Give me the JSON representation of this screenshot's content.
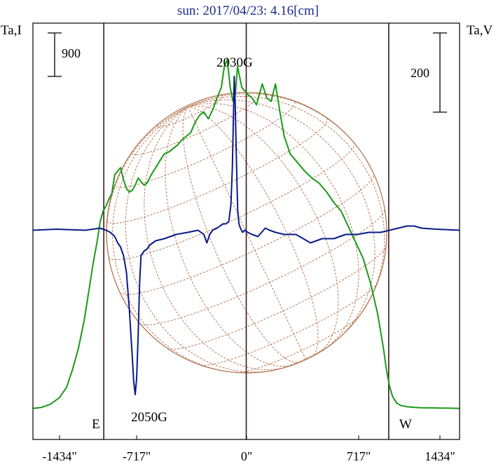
{
  "chart_data": {
    "type": "line",
    "title": "sun: 2017/04/23: 4.16[cm]",
    "left_axis_label": "Ta,I",
    "right_axis_label": "Ta,V",
    "left_scale_bar": "900",
    "right_scale_bar": "200",
    "x_ticks": [
      {
        "value": -1434,
        "label": "-1434\""
      },
      {
        "value": -717,
        "label": "-717\""
      },
      {
        "value": 0,
        "label": "0\""
      },
      {
        "value": 717,
        "label": "717\""
      },
      {
        "value": 1434,
        "label": "1434\""
      }
    ],
    "xlim": [
      -1460,
      1460
    ],
    "limb_markers": [
      {
        "x": -975,
        "label": "E"
      },
      {
        "x": 975,
        "label": "W"
      }
    ],
    "annotations": [
      {
        "label": "2030G",
        "x": -80,
        "series": "V"
      },
      {
        "label": "2050G",
        "x": -760,
        "series": "V"
      }
    ],
    "colors": {
      "intensity": "#1a9a1a",
      "polarization": "#0a1a8a",
      "limb": "#3a1a1a",
      "disk_grid": "#b0704a",
      "title": "#1a2b8c"
    },
    "series": [
      {
        "name": "I",
        "color": "#1a9a1a",
        "x": [
          -1460,
          -1400,
          -1340,
          -1280,
          -1230,
          -1190,
          -1150,
          -1110,
          -1080,
          -1050,
          -1020,
          -1000,
          -980,
          -960,
          -940,
          -920,
          -900,
          -880,
          -860,
          -840,
          -820,
          -800,
          -780,
          -760,
          -740,
          -720,
          -700,
          -680,
          -650,
          -620,
          -590,
          -560,
          -530,
          -500,
          -470,
          -440,
          -410,
          -380,
          -350,
          -320,
          -290,
          -260,
          -230,
          -200,
          -170,
          -150,
          -130,
          -110,
          -90,
          -75,
          -60,
          -45,
          -30,
          -10,
          10,
          40,
          70,
          110,
          140,
          170,
          200,
          230,
          260,
          300,
          350,
          400,
          450,
          500,
          550,
          600,
          650,
          700,
          750,
          800,
          850,
          900,
          940,
          960,
          980,
          1000,
          1030,
          1060,
          1100,
          1150,
          1200,
          1260,
          1330,
          1400,
          1460
        ],
        "values": [
          0,
          30,
          120,
          300,
          600,
          1100,
          1700,
          2500,
          3300,
          4100,
          4800,
          5350,
          5650,
          5800,
          6000,
          6150,
          6700,
          6800,
          6900,
          6550,
          6300,
          6200,
          6250,
          6400,
          6600,
          6500,
          6400,
          6450,
          6700,
          6900,
          7100,
          7300,
          7350,
          7450,
          7550,
          7700,
          7800,
          7900,
          8200,
          8400,
          8500,
          8300,
          8550,
          8900,
          9200,
          9800,
          10000,
          9200,
          8800,
          9000,
          9800,
          9500,
          9200,
          9100,
          9000,
          8900,
          8700,
          9300,
          8900,
          8800,
          9300,
          8500,
          7800,
          7300,
          7050,
          6800,
          6600,
          6450,
          6200,
          5900,
          5650,
          5200,
          4750,
          4300,
          3600,
          2700,
          1700,
          1100,
          650,
          350,
          150,
          80,
          50,
          30,
          20,
          15,
          10,
          5,
          0
        ]
      },
      {
        "name": "V",
        "color": "#0a1a8a",
        "x": [
          -1460,
          -1300,
          -1100,
          -1000,
          -960,
          -930,
          -900,
          -880,
          -860,
          -840,
          -820,
          -800,
          -780,
          -770,
          -760,
          -750,
          -740,
          -730,
          -720,
          -700,
          -680,
          -660,
          -620,
          -560,
          -480,
          -400,
          -330,
          -290,
          -270,
          -250,
          -230,
          -200,
          -160,
          -140,
          -120,
          -105,
          -95,
          -88,
          -82,
          -76,
          -70,
          -64,
          -58,
          -50,
          -40,
          -25,
          -10,
          10,
          40,
          80,
          130,
          160,
          200,
          260,
          340,
          440,
          520,
          600,
          680,
          760,
          840,
          920,
          980,
          1040,
          1100,
          1150,
          1200,
          1300,
          1460
        ],
        "values": [
          0,
          5,
          0,
          10,
          0,
          -10,
          -30,
          -60,
          -80,
          -120,
          -200,
          -380,
          -600,
          -720,
          -780,
          -700,
          -500,
          -250,
          -120,
          -100,
          -90,
          -70,
          -50,
          -40,
          -20,
          -10,
          0,
          -20,
          -60,
          -20,
          0,
          10,
          30,
          30,
          40,
          120,
          300,
          520,
          730,
          620,
          420,
          230,
          90,
          30,
          10,
          -10,
          0,
          -10,
          -20,
          -30,
          10,
          0,
          -10,
          -20,
          -20,
          -60,
          -40,
          -40,
          -20,
          -20,
          -10,
          -10,
          0,
          10,
          20,
          20,
          10,
          5,
          0
        ]
      }
    ],
    "i_range": [
      -750,
      10500
    ],
    "v_range": [
      -820,
      720
    ]
  }
}
